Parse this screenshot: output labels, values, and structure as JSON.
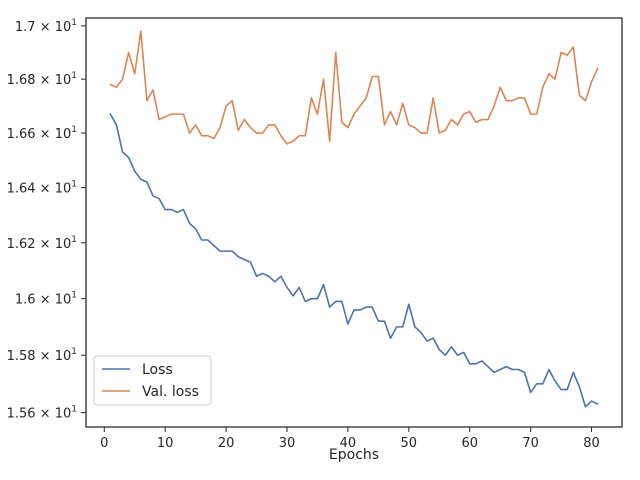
{
  "chart_data": {
    "type": "line",
    "xlabel": "Epochs",
    "ylabel": "",
    "xlim": [
      -3,
      85
    ],
    "ylim": [
      15.55,
      17.03
    ],
    "yscale": "log",
    "x_ticks": [
      0,
      10,
      20,
      30,
      40,
      50,
      60,
      70,
      80
    ],
    "y_ticks": [
      {
        "value": 15.6,
        "mantissa": "1.56"
      },
      {
        "value": 15.8,
        "mantissa": "1.58"
      },
      {
        "value": 16.0,
        "mantissa": "1.6"
      },
      {
        "value": 16.2,
        "mantissa": "1.62"
      },
      {
        "value": 16.4,
        "mantissa": "1.64"
      },
      {
        "value": 16.6,
        "mantissa": "1.66"
      },
      {
        "value": 16.8,
        "mantissa": "1.68"
      },
      {
        "value": 17.0,
        "mantissa": "1.7"
      }
    ],
    "y_tick_suffix": "× 10",
    "y_tick_exponent": "1",
    "grid": false,
    "legend_position": "lower-left",
    "x": [
      1,
      2,
      3,
      4,
      5,
      6,
      7,
      8,
      9,
      10,
      11,
      12,
      13,
      14,
      15,
      16,
      17,
      18,
      19,
      20,
      21,
      22,
      23,
      24,
      25,
      26,
      27,
      28,
      29,
      30,
      31,
      32,
      33,
      34,
      35,
      36,
      37,
      38,
      39,
      40,
      41,
      42,
      43,
      44,
      45,
      46,
      47,
      48,
      49,
      50,
      51,
      52,
      53,
      54,
      55,
      56,
      57,
      58,
      59,
      60,
      61,
      62,
      63,
      64,
      65,
      66,
      67,
      68,
      69,
      70,
      71,
      72,
      73,
      74,
      75,
      76,
      77,
      78,
      79,
      80,
      81
    ],
    "series": [
      {
        "name": "Loss",
        "color": "#4c72b0",
        "values": [
          16.67,
          16.63,
          16.53,
          16.51,
          16.46,
          16.43,
          16.42,
          16.37,
          16.36,
          16.32,
          16.32,
          16.31,
          16.32,
          16.27,
          16.25,
          16.21,
          16.21,
          16.19,
          16.17,
          16.17,
          16.17,
          16.15,
          16.14,
          16.13,
          16.08,
          16.09,
          16.08,
          16.06,
          16.08,
          16.04,
          16.01,
          16.04,
          15.99,
          16.0,
          16.0,
          16.05,
          15.97,
          15.99,
          15.99,
          15.91,
          15.96,
          15.96,
          15.97,
          15.97,
          15.92,
          15.92,
          15.86,
          15.9,
          15.9,
          15.98,
          15.9,
          15.88,
          15.85,
          15.86,
          15.82,
          15.8,
          15.83,
          15.8,
          15.81,
          15.77,
          15.77,
          15.78,
          15.76,
          15.74,
          15.75,
          15.76,
          15.75,
          15.75,
          15.74,
          15.67,
          15.7,
          15.7,
          15.75,
          15.71,
          15.68,
          15.68,
          15.74,
          15.69,
          15.62,
          15.64,
          15.63
        ]
      },
      {
        "name": "Val. loss",
        "color": "#dd8452",
        "values": [
          16.78,
          16.77,
          16.8,
          16.9,
          16.82,
          16.98,
          16.72,
          16.76,
          16.65,
          16.66,
          16.67,
          16.67,
          16.67,
          16.6,
          16.63,
          16.59,
          16.59,
          16.58,
          16.62,
          16.7,
          16.72,
          16.61,
          16.65,
          16.62,
          16.6,
          16.6,
          16.63,
          16.63,
          16.59,
          16.56,
          16.57,
          16.59,
          16.59,
          16.73,
          16.67,
          16.8,
          16.57,
          16.9,
          16.64,
          16.62,
          16.67,
          16.7,
          16.73,
          16.81,
          16.81,
          16.63,
          16.68,
          16.63,
          16.71,
          16.63,
          16.62,
          16.6,
          16.6,
          16.73,
          16.6,
          16.61,
          16.65,
          16.63,
          16.67,
          16.68,
          16.64,
          16.65,
          16.65,
          16.7,
          16.77,
          16.72,
          16.72,
          16.73,
          16.73,
          16.67,
          16.67,
          16.77,
          16.82,
          16.8,
          16.9,
          16.89,
          16.92,
          16.74,
          16.72,
          16.79,
          16.84
        ]
      }
    ]
  }
}
